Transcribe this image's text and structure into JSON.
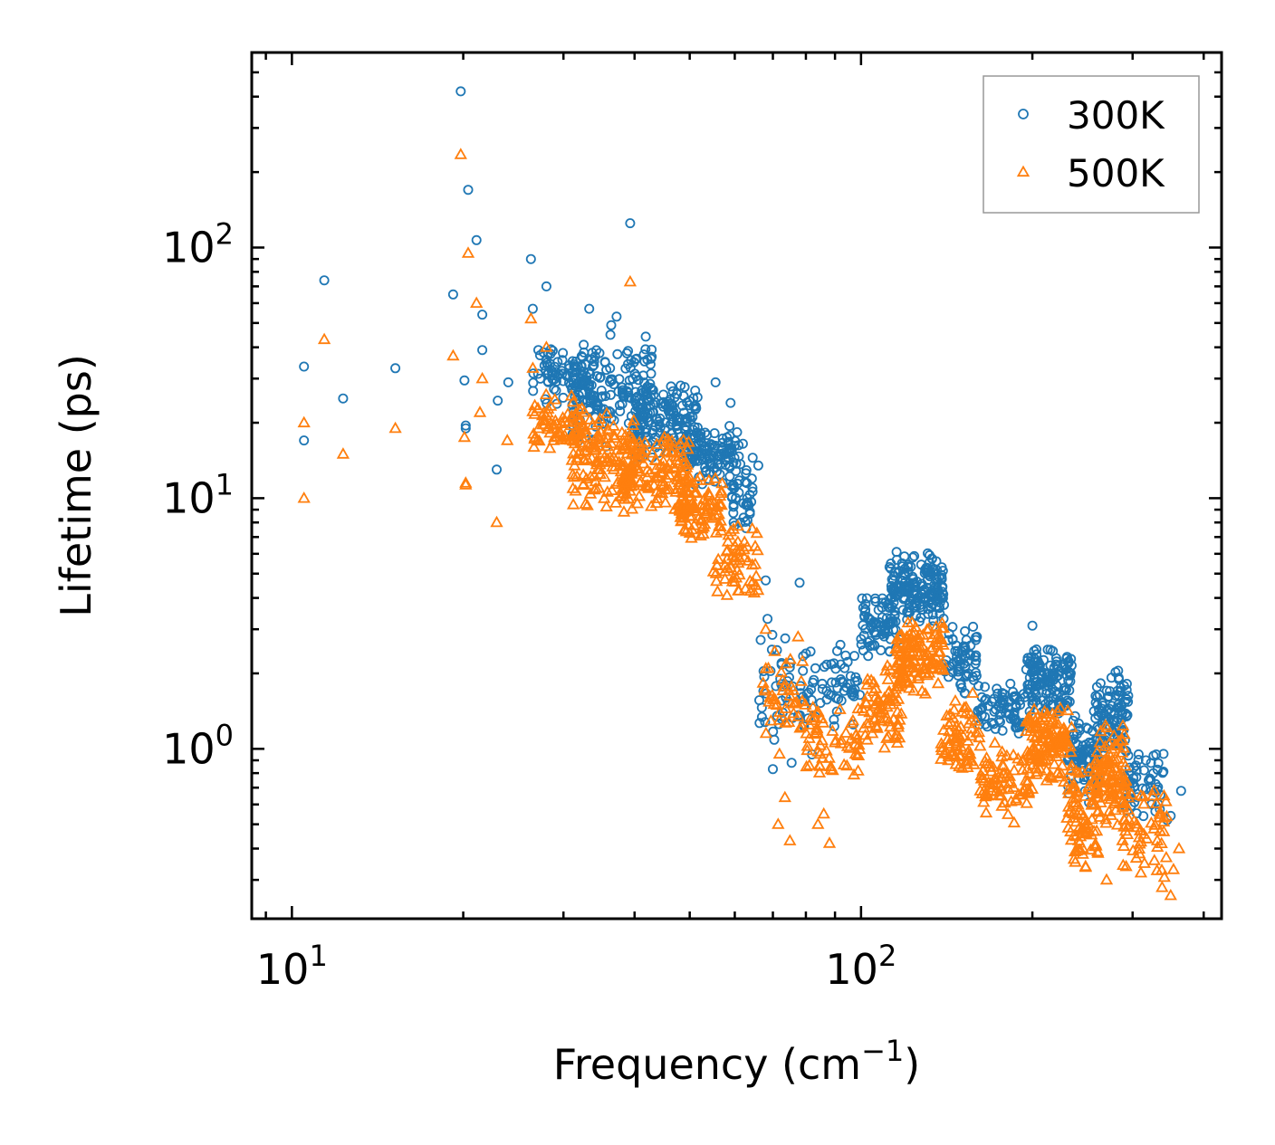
{
  "chart_data": {
    "type": "scatter",
    "title": "",
    "xlabel": {
      "base": "Frequency (cm",
      "sup": "−1",
      "tail": ")"
    },
    "ylabel": "Lifetime (ps)",
    "xscale": "log",
    "yscale": "log",
    "xlim": [
      8.5,
      430
    ],
    "ylim": [
      0.21,
      600
    ],
    "x_ticks": [
      {
        "value": 10,
        "base": "10",
        "exp": "1"
      },
      {
        "value": 100,
        "base": "10",
        "exp": "2"
      }
    ],
    "y_ticks": [
      {
        "value": 1,
        "base": "10",
        "exp": "0"
      },
      {
        "value": 10,
        "base": "10",
        "exp": "1"
      },
      {
        "value": 100,
        "base": "10",
        "exp": "2"
      }
    ],
    "legend": {
      "position": "top-right"
    },
    "series": [
      {
        "name": "300K",
        "marker": "circle",
        "color": "#1f77b4",
        "points": [
          [
            10.5,
            33.5
          ],
          [
            10.5,
            17.0
          ],
          [
            11.4,
            74.0
          ],
          [
            12.3,
            25.0
          ],
          [
            15.2,
            33.0
          ],
          [
            19.2,
            65.0
          ],
          [
            19.8,
            420.0
          ],
          [
            20.1,
            29.5
          ],
          [
            20.2,
            19.5
          ],
          [
            20.2,
            19.0
          ],
          [
            20.4,
            170.0
          ],
          [
            21.1,
            107.0
          ],
          [
            21.6,
            54.0
          ],
          [
            21.6,
            39.0
          ],
          [
            22.9,
            13.0
          ],
          [
            23.0,
            24.5
          ],
          [
            24.0,
            29.0
          ],
          [
            26.3,
            90.0
          ],
          [
            26.5,
            57.0
          ],
          [
            27.1,
            39.0
          ],
          [
            28.0,
            70.0
          ],
          [
            33.3,
            57.0
          ],
          [
            36.4,
            49.0
          ],
          [
            37.2,
            53.0
          ],
          [
            39.3,
            125.0
          ],
          [
            55.5,
            29.0
          ],
          [
            59.0,
            24.0
          ],
          [
            62.0,
            16.5
          ],
          [
            64.5,
            14.5
          ],
          [
            66.0,
            13.5
          ],
          [
            68.0,
            4.7
          ],
          [
            68.5,
            3.3
          ],
          [
            70.0,
            0.83
          ],
          [
            72.5,
            2.2
          ],
          [
            73.8,
            1.6
          ],
          [
            75.5,
            0.88
          ],
          [
            78.0,
            4.6
          ],
          [
            80.0,
            2.4
          ],
          [
            82.0,
            0.95
          ],
          [
            87.0,
            1.7
          ],
          [
            92.0,
            2.6
          ],
          [
            125.0,
            3.4
          ],
          [
            155.0,
            2.4
          ],
          [
            200.0,
            3.1
          ],
          [
            254.0,
            1.05
          ],
          [
            283.0,
            2.05
          ],
          [
            330.0,
            0.95
          ],
          [
            345.0,
            0.52
          ],
          [
            350.0,
            0.54
          ],
          [
            365.0,
            0.68
          ]
        ],
        "clusters": [
          {
            "x_range": [
              26.5,
              34.0
            ],
            "y_range": [
              22.0,
              44.0
            ],
            "n": 90
          },
          {
            "x_range": [
              31.0,
              43.0
            ],
            "y_range": [
              15.0,
              46.0
            ],
            "n": 160
          },
          {
            "x_range": [
              40.0,
              52.0
            ],
            "y_range": [
              14.0,
              30.0
            ],
            "n": 150
          },
          {
            "x_range": [
              49.0,
              61.0
            ],
            "y_range": [
              11.0,
              20.0
            ],
            "n": 110
          },
          {
            "x_range": [
              59.0,
              64.5
            ],
            "y_range": [
              7.0,
              15.0
            ],
            "n": 40
          },
          {
            "x_range": [
              66.0,
              80.0
            ],
            "y_range": [
              1.0,
              3.2
            ],
            "n": 45
          },
          {
            "x_range": [
              80.0,
              100.0
            ],
            "y_range": [
              1.2,
              2.6
            ],
            "n": 55
          },
          {
            "x_range": [
              100.0,
              117.0
            ],
            "y_range": [
              2.3,
              4.3
            ],
            "n": 80
          },
          {
            "x_range": [
              112.0,
              140.0
            ],
            "y_range": [
              3.0,
              6.2
            ],
            "n": 170
          },
          {
            "x_range": [
              140.0,
              160.0
            ],
            "y_range": [
              1.6,
              3.2
            ],
            "n": 60
          },
          {
            "x_range": [
              160.0,
              195.0
            ],
            "y_range": [
              1.1,
              1.9
            ],
            "n": 75
          },
          {
            "x_range": [
              195.0,
              235.0
            ],
            "y_range": [
              1.3,
              2.6
            ],
            "n": 140
          },
          {
            "x_range": [
              230.0,
              262.0
            ],
            "y_range": [
              0.58,
              1.5
            ],
            "n": 85
          },
          {
            "x_range": [
              258.0,
              295.0
            ],
            "y_range": [
              0.9,
              2.1
            ],
            "n": 100
          },
          {
            "x_range": [
              290.0,
              340.0
            ],
            "y_range": [
              0.5,
              1.05
            ],
            "n": 55
          }
        ]
      },
      {
        "name": "500K",
        "marker": "triangle",
        "color": "#ff7f0e",
        "points": [
          [
            10.5,
            20.0
          ],
          [
            10.5,
            10.0
          ],
          [
            11.4,
            43.0
          ],
          [
            12.3,
            15.0
          ],
          [
            15.2,
            19.0
          ],
          [
            19.2,
            37.0
          ],
          [
            19.8,
            235.0
          ],
          [
            20.1,
            17.5
          ],
          [
            20.2,
            11.5
          ],
          [
            20.2,
            11.3
          ],
          [
            20.4,
            95.0
          ],
          [
            21.1,
            60.0
          ],
          [
            21.4,
            22.0
          ],
          [
            21.6,
            30.0
          ],
          [
            22.9,
            8.0
          ],
          [
            23.9,
            17.0
          ],
          [
            26.3,
            52.0
          ],
          [
            26.5,
            33.0
          ],
          [
            28.0,
            40.0
          ],
          [
            39.3,
            73.0
          ],
          [
            68.0,
            3.0
          ],
          [
            71.5,
            0.5
          ],
          [
            73.5,
            0.64
          ],
          [
            75.0,
            0.43
          ],
          [
            77.5,
            2.8
          ],
          [
            84.0,
            0.5
          ],
          [
            86.0,
            0.55
          ],
          [
            88.0,
            0.42
          ],
          [
            162.0,
            0.68
          ],
          [
            248.0,
            0.34
          ],
          [
            270.0,
            0.3
          ],
          [
            338.0,
            0.28
          ],
          [
            350.0,
            0.26
          ],
          [
            354.0,
            0.33
          ],
          [
            362.0,
            0.4
          ]
        ],
        "clusters": [
          {
            "x_range": [
              26.5,
              33.0
            ],
            "y_range": [
              15.0,
              27.0
            ],
            "n": 70
          },
          {
            "x_range": [
              31.0,
              40.0
            ],
            "y_range": [
              8.5,
              23.0
            ],
            "n": 140
          },
          {
            "x_range": [
              38.0,
              50.0
            ],
            "y_range": [
              8.0,
              20.0
            ],
            "n": 140
          },
          {
            "x_range": [
              48.0,
              57.0
            ],
            "y_range": [
              6.5,
              13.0
            ],
            "n": 100
          },
          {
            "x_range": [
              55.0,
              66.0
            ],
            "y_range": [
              3.8,
              8.0
            ],
            "n": 60
          },
          {
            "x_range": [
              67.0,
              80.0
            ],
            "y_range": [
              0.9,
              2.5
            ],
            "n": 45
          },
          {
            "x_range": [
              80.0,
              100.0
            ],
            "y_range": [
              0.75,
              1.6
            ],
            "n": 60
          },
          {
            "x_range": [
              100.0,
              118.0
            ],
            "y_range": [
              1.0,
              2.2
            ],
            "n": 80
          },
          {
            "x_range": [
              115.0,
              140.0
            ],
            "y_range": [
              1.6,
              3.4
            ],
            "n": 140
          },
          {
            "x_range": [
              138.0,
              162.0
            ],
            "y_range": [
              0.75,
              1.7
            ],
            "n": 70
          },
          {
            "x_range": [
              162.0,
              198.0
            ],
            "y_range": [
              0.5,
              1.1
            ],
            "n": 80
          },
          {
            "x_range": [
              195.0,
              235.0
            ],
            "y_range": [
              0.65,
              1.55
            ],
            "n": 140
          },
          {
            "x_range": [
              230.0,
              262.0
            ],
            "y_range": [
              0.33,
              0.9
            ],
            "n": 90
          },
          {
            "x_range": [
              258.0,
              292.0
            ],
            "y_range": [
              0.45,
              1.35
            ],
            "n": 100
          },
          {
            "x_range": [
              288.0,
              345.0
            ],
            "y_range": [
              0.3,
              0.75
            ],
            "n": 60
          }
        ]
      }
    ]
  }
}
